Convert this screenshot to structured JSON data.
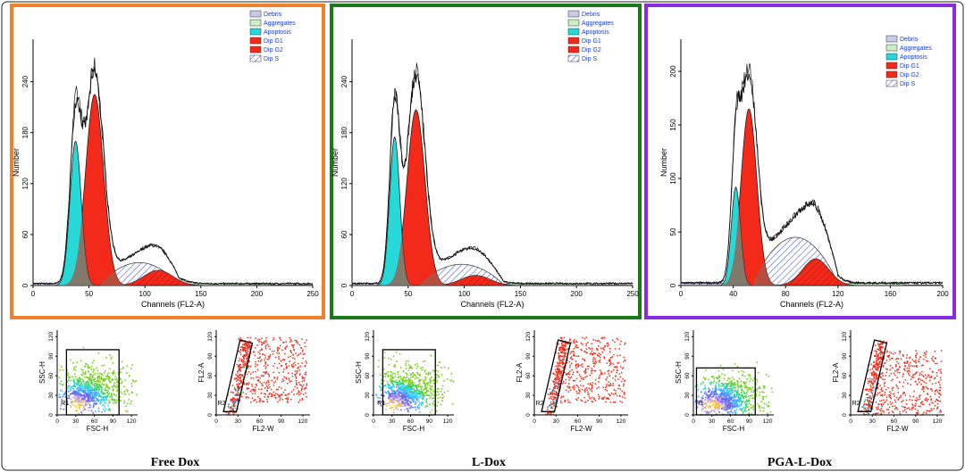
{
  "colors": {
    "frame_1": "#f0822c",
    "frame_2": "#1a7a1a",
    "frame_3": "#8a2be2",
    "debris": "#c8cbe8",
    "aggregates": "#c9efc4",
    "apoptosis": "#27d8d8",
    "dip_g1": "#f32a1a",
    "dip_g2": "#f32a1a",
    "dip_s": "#6d7fe0"
  },
  "legend": [
    "Debris",
    "Aggregates",
    "Apoptosis",
    "Dip G1",
    "Dip G2",
    "Dip S"
  ],
  "chart_data": [
    {
      "type": "area",
      "title": "Free Dox",
      "xlabel": "Channels (FL2-A)",
      "ylabel": "Number",
      "xlim": [
        0,
        250
      ],
      "ylim": [
        0,
        290
      ],
      "xticks": [
        0,
        50,
        100,
        150,
        200,
        250
      ],
      "yticks": [
        0,
        60,
        120,
        180,
        240
      ],
      "series": [
        {
          "name": "Apoptosis",
          "peak_x": 38,
          "peak_y": 170,
          "width": 5
        },
        {
          "name": "Dip G1",
          "peak_x": 55,
          "peak_y": 225,
          "width": 8
        },
        {
          "name": "Dip S",
          "x_range": [
            60,
            130
          ],
          "peak_y": 27
        },
        {
          "name": "Dip G2",
          "peak_x": 112,
          "peak_y": 18,
          "width": 13
        }
      ],
      "envelope_peak": 252,
      "scatter_plots": [
        {
          "xlabel": "FSC-H",
          "ylabel": "SSC-H",
          "xticks": [
            0,
            30,
            60,
            90,
            120
          ],
          "yticks": [
            0,
            30,
            60,
            90,
            120
          ],
          "gate": "R1"
        },
        {
          "xlabel": "FL2-W",
          "ylabel": "FL2-A",
          "xticks": [
            0,
            30,
            60,
            90,
            120
          ],
          "yticks": [
            0,
            30,
            60,
            90,
            120
          ],
          "gate": "R2"
        }
      ]
    },
    {
      "type": "area",
      "title": "L-Dox",
      "xlabel": "Channels (FL2-A)",
      "ylabel": "Number",
      "xlim": [
        0,
        250
      ],
      "ylim": [
        0,
        290
      ],
      "xticks": [
        0,
        50,
        100,
        150,
        200,
        250
      ],
      "yticks": [
        0,
        60,
        120,
        180,
        240
      ],
      "series": [
        {
          "name": "Apoptosis",
          "peak_x": 38,
          "peak_y": 175,
          "width": 4.5
        },
        {
          "name": "Dip G1",
          "peak_x": 57,
          "peak_y": 207,
          "width": 8
        },
        {
          "name": "Dip S",
          "x_range": [
            60,
            135
          ],
          "peak_y": 25
        },
        {
          "name": "Dip G2",
          "peak_x": 110,
          "peak_y": 12,
          "width": 13
        }
      ],
      "envelope_peak": 247,
      "scatter_plots": [
        {
          "xlabel": "FSC-H",
          "ylabel": "SSC-H",
          "xticks": [
            0,
            30,
            60,
            90,
            120
          ],
          "yticks": [
            0,
            30,
            60,
            90,
            120
          ],
          "gate": "R1"
        },
        {
          "xlabel": "FL2-W",
          "ylabel": "FL2-A",
          "xticks": [
            0,
            30,
            60,
            90,
            120
          ],
          "yticks": [
            0,
            30,
            60,
            90,
            120
          ],
          "gate": "R2"
        }
      ]
    },
    {
      "type": "area",
      "title": "PGA-L-Dox",
      "xlabel": "Channels (FL2-A)",
      "ylabel": "Number",
      "xlim": [
        0,
        200
      ],
      "ylim": [
        0,
        230
      ],
      "xticks": [
        0,
        40,
        80,
        120,
        160,
        200
      ],
      "yticks": [
        0,
        50,
        100,
        150,
        200
      ],
      "series": [
        {
          "name": "Apoptosis",
          "peak_x": 42,
          "peak_y": 92,
          "width": 3.5
        },
        {
          "name": "Dip G1",
          "peak_x": 52,
          "peak_y": 165,
          "width": 6
        },
        {
          "name": "Dip S",
          "x_range": [
            55,
            120
          ],
          "peak_y": 45
        },
        {
          "name": "Dip G2",
          "peak_x": 103,
          "peak_y": 25,
          "width": 10
        }
      ],
      "envelope_peak": 200,
      "scatter_plots": [
        {
          "xlabel": "FSC-H",
          "ylabel": "SSC-H",
          "xticks": [
            0,
            30,
            60,
            90,
            120
          ],
          "yticks": [
            0,
            30,
            60,
            90,
            120
          ],
          "gate": "R1"
        },
        {
          "xlabel": "FL2-W",
          "ylabel": "FL2-A",
          "xticks": [
            0,
            30,
            60,
            90,
            120
          ],
          "yticks": [
            0,
            30,
            60,
            90,
            120
          ],
          "gate": "R2"
        }
      ]
    }
  ]
}
